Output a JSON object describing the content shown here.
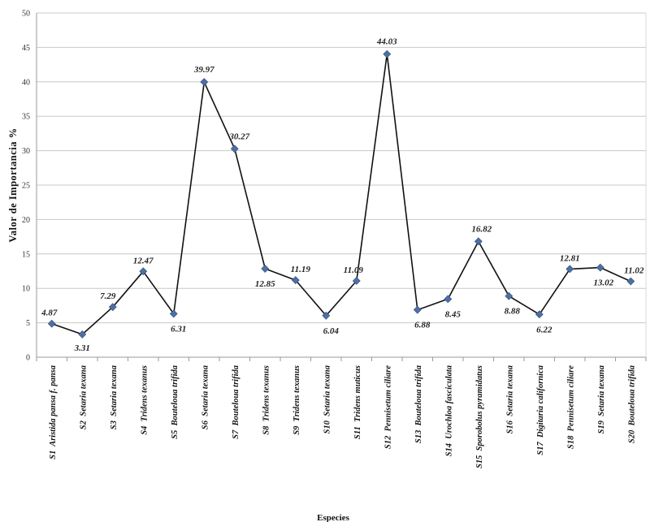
{
  "chart_data": {
    "type": "line",
    "title": "",
    "ylabel": "Valor de Importancia %",
    "xlabel": "Especies",
    "ylim": [
      0,
      50
    ],
    "yticks": [
      0,
      5,
      10,
      15,
      20,
      25,
      30,
      35,
      40,
      45,
      50
    ],
    "grid": true,
    "legend": "none",
    "colors": {
      "line": "#111111",
      "marker": "#4f6fa3",
      "grid": "#c8c8c8"
    },
    "categories": [
      "S1  Aristida pansa f. pansa",
      "S2  Setaria texana",
      "S3  Setaria texana",
      "S4  Tridens texanus",
      "S5  Bouteloua trifida",
      "S6  Setaria texana",
      "S7  Bouteloua trifida",
      "S8  Tridens texanus",
      "S9  Tridens texanus",
      "S10  Setaria texana",
      "S11  Tridens muticus",
      "S12  Pennisetum ciliare",
      "S13  Bouteloua trifida",
      "S14  Urochloa fasciculata",
      "S15  Sporobolus pyramidatus",
      "S16  Setaria texana",
      "S17  Digitaria californica",
      "S18  Pennisetum ciliare",
      "S19  Setaria texana",
      "S20  Bouteloua trifida"
    ],
    "series": [
      {
        "values": [
          4.87,
          3.31,
          7.29,
          12.47,
          6.31,
          39.97,
          30.27,
          12.85,
          11.19,
          6.04,
          11.09,
          44.03,
          6.88,
          8.45,
          16.82,
          8.88,
          6.22,
          12.81,
          13.02,
          11.02
        ],
        "data_labels": [
          "4.87",
          "3.31",
          "7.29",
          "12.47",
          "6.31",
          "39.97",
          "30.27",
          "12.85",
          "11.19",
          "6.04",
          "11.09",
          "44.03",
          "6.88",
          "8.45",
          "16.82",
          "8.88",
          "6.22",
          "12.81",
          "13.02",
          "11.02"
        ]
      }
    ]
  }
}
